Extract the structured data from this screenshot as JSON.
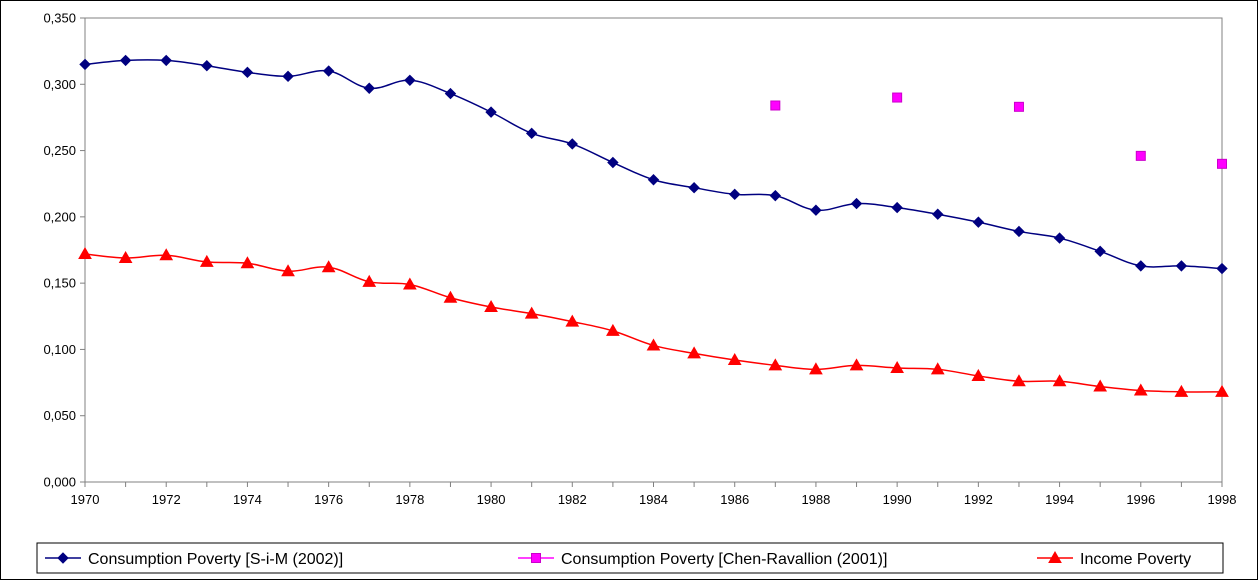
{
  "chart_data": {
    "type": "line",
    "title": "",
    "xlabel": "",
    "ylabel": "",
    "x_categories": [
      "1970",
      "1971",
      "1972",
      "1973",
      "1974",
      "1975",
      "1976",
      "1977",
      "1978",
      "1979",
      "1980",
      "1981",
      "1982",
      "1983",
      "1984",
      "1985",
      "1986",
      "1987",
      "1988",
      "1989",
      "1990",
      "1991",
      "1992",
      "1993",
      "1994",
      "1995",
      "1996",
      "1997",
      "1998"
    ],
    "x_tick_labels": [
      "1970",
      "1972",
      "1974",
      "1976",
      "1978",
      "1980",
      "1982",
      "1984",
      "1986",
      "1988",
      "1990",
      "1992",
      "1994",
      "1996",
      "1998"
    ],
    "ylim": [
      0,
      0.35
    ],
    "y_tick_values": [
      0,
      0.05,
      0.1,
      0.15,
      0.2,
      0.25,
      0.3,
      0.35
    ],
    "y_tick_labels": [
      "0,000",
      "0,050",
      "0,100",
      "0,150",
      "0,200",
      "0,250",
      "0,300",
      "0,350"
    ],
    "grid": "horizontal",
    "legend_position": "bottom",
    "series": [
      {
        "name": "Consumption Poverty [S-i-M (2002)]",
        "color": "#000080",
        "marker": "diamond",
        "line": true,
        "x": [
          1970,
          1971,
          1972,
          1973,
          1974,
          1975,
          1976,
          1977,
          1978,
          1979,
          1980,
          1981,
          1982,
          1983,
          1984,
          1985,
          1986,
          1987,
          1988,
          1989,
          1990,
          1991,
          1992,
          1993,
          1994,
          1995,
          1996,
          1997,
          1998
        ],
        "values": [
          0.315,
          0.318,
          0.318,
          0.314,
          0.309,
          0.306,
          0.31,
          0.297,
          0.303,
          0.293,
          0.279,
          0.263,
          0.255,
          0.241,
          0.228,
          0.222,
          0.217,
          0.216,
          0.205,
          0.21,
          0.207,
          0.202,
          0.196,
          0.189,
          0.184,
          0.174,
          0.163,
          0.163,
          0.161
        ]
      },
      {
        "name": "Consumption Poverty [Chen-Ravallion (2001)]",
        "color": "#FF00FF",
        "marker": "square",
        "line": false,
        "x": [
          1987,
          1990,
          1993,
          1996,
          1998
        ],
        "values": [
          0.284,
          0.29,
          0.283,
          0.246,
          0.24
        ]
      },
      {
        "name": "Income Poverty",
        "color": "#FF0000",
        "marker": "triangle",
        "line": true,
        "x": [
          1970,
          1971,
          1972,
          1973,
          1974,
          1975,
          1976,
          1977,
          1978,
          1979,
          1980,
          1981,
          1982,
          1983,
          1984,
          1985,
          1986,
          1987,
          1988,
          1989,
          1990,
          1991,
          1992,
          1993,
          1994,
          1995,
          1996,
          1997,
          1998
        ],
        "values": [
          0.172,
          0.169,
          0.171,
          0.166,
          0.165,
          0.159,
          0.162,
          0.151,
          0.149,
          0.139,
          0.132,
          0.127,
          0.121,
          0.114,
          0.103,
          0.097,
          0.092,
          0.088,
          0.085,
          0.088,
          0.086,
          0.085,
          0.08,
          0.076,
          0.076,
          0.072,
          0.069,
          0.068,
          0.068
        ]
      }
    ]
  }
}
